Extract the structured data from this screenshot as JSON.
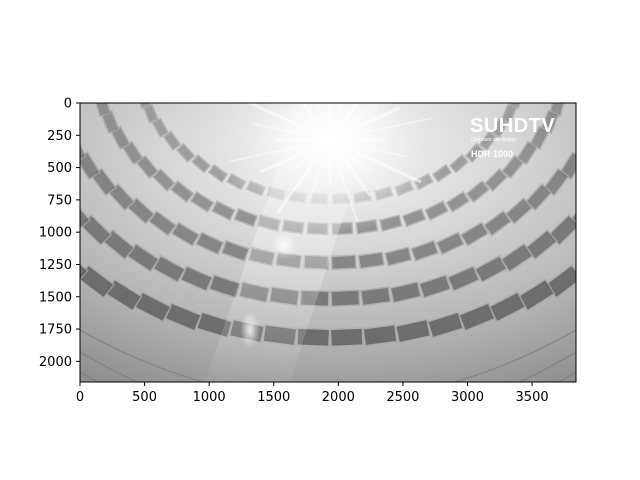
{
  "image": {
    "subject": "pantheon-dome-coffered-ceiling",
    "colormap": "gray",
    "x_ticks": [
      "0",
      "500",
      "1000",
      "1500",
      "2000",
      "2500",
      "3000",
      "3500"
    ],
    "y_ticks": [
      "0",
      "250",
      "500",
      "750",
      "1000",
      "1250",
      "1500",
      "1750",
      "2000"
    ],
    "x_range": [
      0,
      3840
    ],
    "y_range": [
      0,
      2160
    ]
  },
  "watermark": {
    "title": "SUHDTV",
    "subtitle": "Quantum dot display",
    "badge": "HDR 1000"
  }
}
